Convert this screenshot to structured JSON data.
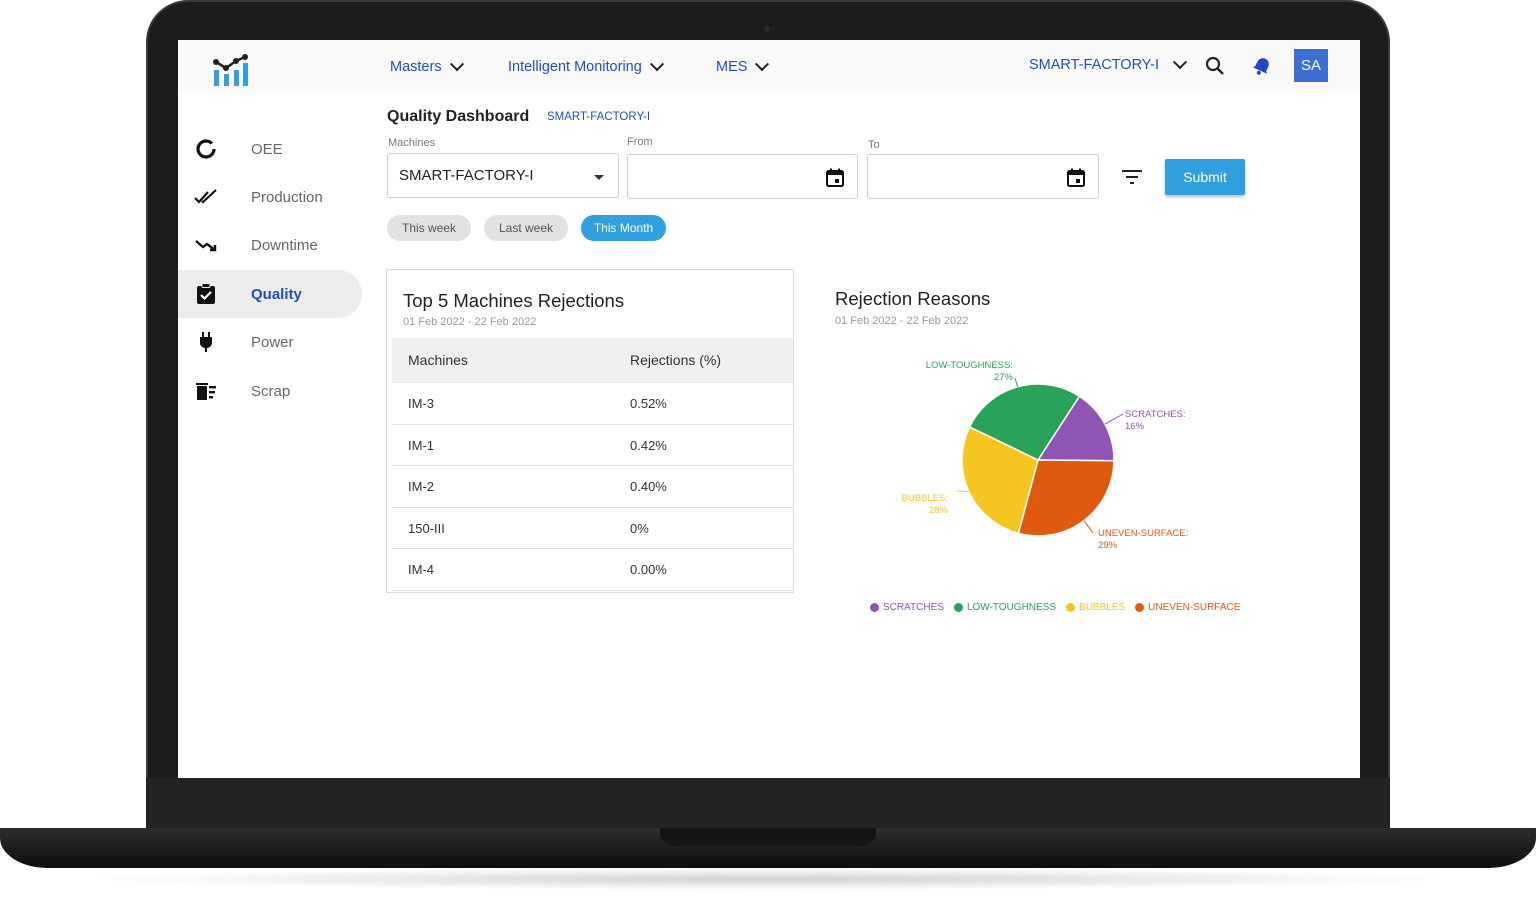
{
  "nav": {
    "items": [
      {
        "label": "Masters"
      },
      {
        "label": "Intelligent Monitoring"
      },
      {
        "label": "MES"
      }
    ],
    "factory": "SMART-FACTORY-I",
    "avatar": "SA"
  },
  "sidebar": {
    "items": [
      {
        "label": "OEE",
        "icon": "donut-icon"
      },
      {
        "label": "Production",
        "icon": "double-check-icon"
      },
      {
        "label": "Downtime",
        "icon": "trend-down-icon"
      },
      {
        "label": "Quality",
        "icon": "clipboard-check-icon",
        "active": true
      },
      {
        "label": "Power",
        "icon": "plug-icon"
      },
      {
        "label": "Scrap",
        "icon": "delete-sweep-icon"
      }
    ]
  },
  "page": {
    "title": "Quality Dashboard",
    "subtitle": "SMART-FACTORY-I"
  },
  "filters": {
    "machines_label": "Machines",
    "machines_value": "SMART-FACTORY-I",
    "from_label": "From",
    "from_value": "",
    "to_label": "To",
    "to_value": "",
    "submit_label": "Submit",
    "chips": [
      {
        "label": "This week"
      },
      {
        "label": "Last week"
      },
      {
        "label": "This Month",
        "active": true
      }
    ]
  },
  "table_card": {
    "title": "Top 5 Machines Rejections",
    "date_range": "01 Feb 2022 - 22 Feb 2022",
    "headers": [
      "Machines",
      "Rejections (%)"
    ],
    "rows": [
      [
        "IM-3",
        "0.52%"
      ],
      [
        "IM-1",
        "0.42%"
      ],
      [
        "IM-2",
        "0.40%"
      ],
      [
        "150-III",
        "0%"
      ],
      [
        "IM-4",
        "0.00%"
      ]
    ]
  },
  "pie_card": {
    "title": "Rejection Reasons",
    "date_range": "01 Feb 2022 - 22 Feb 2022"
  },
  "chart_data": {
    "type": "pie",
    "title": "Rejection Reasons",
    "slices": [
      {
        "name": "SCRATCHES",
        "label": "SCRATCHES:",
        "pct_label": "16%",
        "value": 16,
        "color": "#8e55b5"
      },
      {
        "name": "UNEVEN-SURFACE",
        "label": "UNEVEN-SURFACE:",
        "pct_label": "29%",
        "value": 29,
        "color": "#e05a0e"
      },
      {
        "name": "BUBBLES",
        "label": "BUBBLES:",
        "pct_label": "28%",
        "value": 28,
        "color": "#f7c520"
      },
      {
        "name": "LOW-TOUGHNESS",
        "label": "LOW-TOUGHNESS:",
        "pct_label": "27%",
        "value": 27,
        "color": "#2aa25a"
      }
    ],
    "legend": [
      "SCRATCHES",
      "LOW-TOUGHNESS",
      "BUBBLES",
      "UNEVEN-SURFACE"
    ],
    "legend_position": "bottom"
  },
  "colors": {
    "accent": "#2f9fe0",
    "nav_text": "#1f4fb8"
  }
}
